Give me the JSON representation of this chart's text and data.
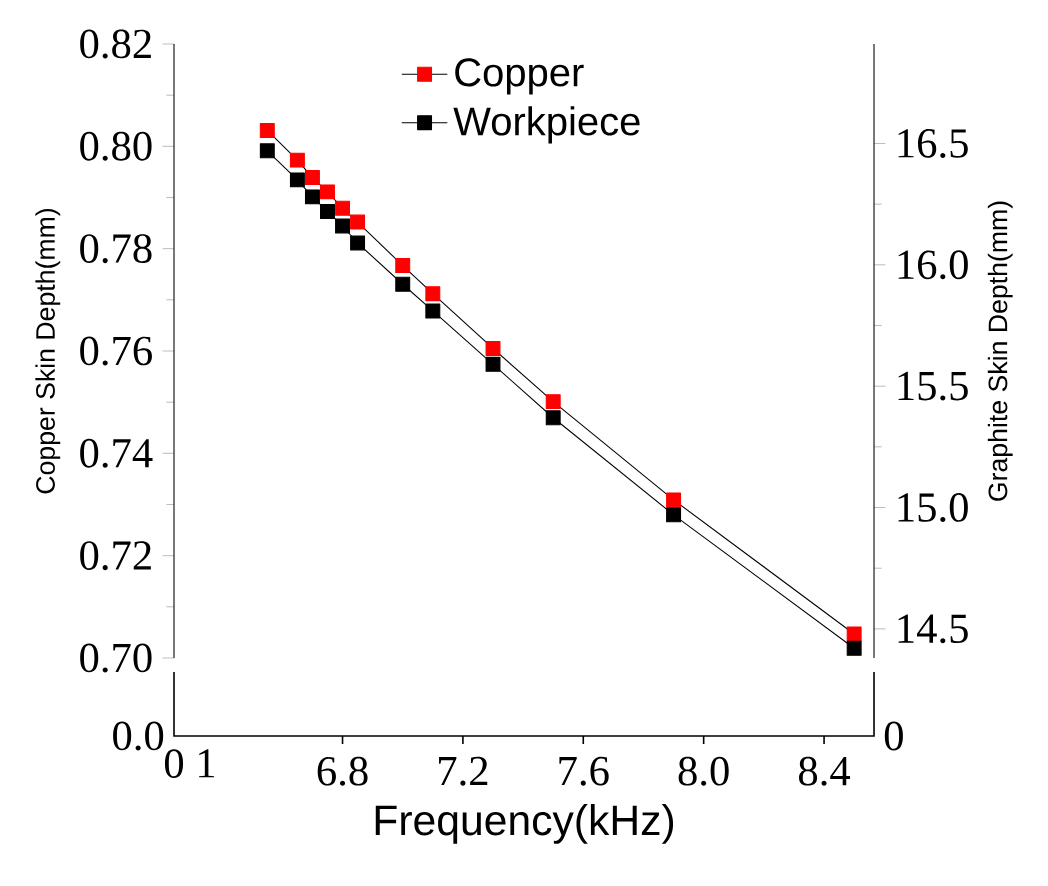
{
  "chart_data": [
    {
      "type": "line",
      "xlabel": "Frequency(kHz)",
      "ylabel": "Copper Skin Depth(mm)",
      "y2label": "Graphite Skin Depth(mm)",
      "x": [
        6.55,
        6.65,
        6.7,
        6.75,
        6.8,
        6.85,
        7.0,
        7.1,
        7.3,
        7.5,
        7.9,
        8.5
      ],
      "series": [
        {
          "name": "Copper",
          "color": "#ff0000",
          "values": [
            0.8031,
            0.7973,
            0.7939,
            0.7911,
            0.7879,
            0.7852,
            0.7767,
            0.7712,
            0.7605,
            0.7501,
            0.7309,
            0.7047
          ]
        },
        {
          "name": "Workpiece",
          "color": "#000000",
          "axis": "y2",
          "values": [
            16.47,
            16.35,
            16.28,
            16.22,
            16.16,
            16.09,
            15.92,
            15.81,
            15.59,
            15.37,
            14.97,
            14.42
          ]
        }
      ],
      "xlim": [
        6.24,
        8.566
      ],
      "xticks": [
        6.8,
        7.2,
        7.6,
        {
          "value": 8,
          "label": "8.0"
        },
        8.4
      ],
      "ylim": [
        0.7,
        0.82
      ],
      "yticks": [
        {
          "value": 0.7,
          "label": "0.70"
        },
        0.72,
        0.74,
        0.76,
        0.78,
        {
          "value": 0.8,
          "label": "0.80"
        },
        0.82
      ],
      "y2lim": [
        14.38,
        16.91
      ],
      "y2ticks": [
        14.5,
        {
          "value": 15,
          "label": "15.0"
        },
        15.5,
        {
          "value": 16,
          "label": "16.0"
        },
        16.5
      ],
      "legend": "top",
      "marker": "square",
      "line_style": "solid"
    },
    {
      "type": "other",
      "annotations": [
        "0.0",
        "0",
        "1",
        "0"
      ]
    }
  ]
}
